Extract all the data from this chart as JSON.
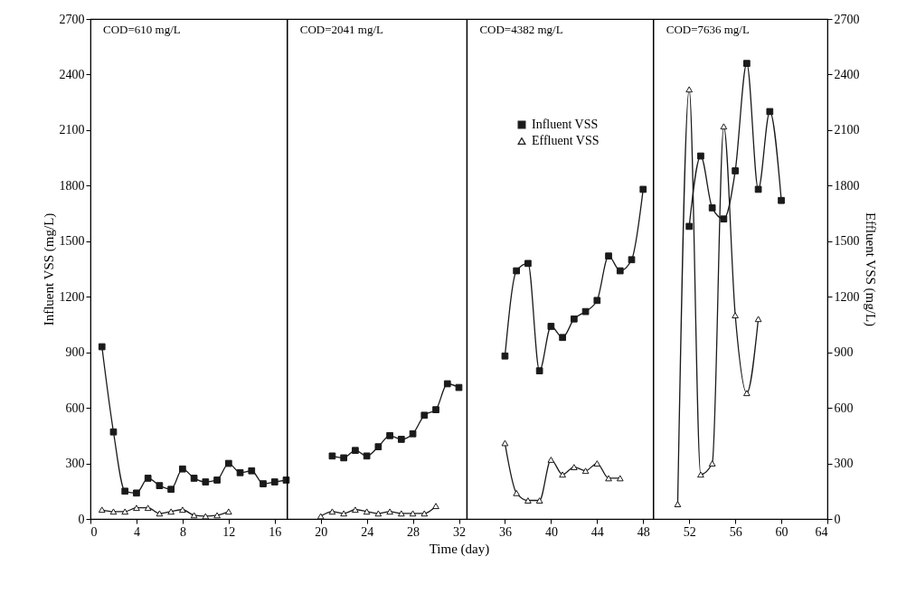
{
  "chart_data": {
    "type": "line",
    "xlabel": "Time (day)",
    "ylabel": "Influent VSS (mg/L)",
    "y2label": "Effluent VSS (mg/L)",
    "xlim": [
      0,
      64
    ],
    "xticks": [
      0,
      4,
      8,
      12,
      16,
      20,
      24,
      28,
      32,
      36,
      40,
      44,
      48,
      52,
      56,
      60,
      64
    ],
    "ylim": [
      0,
      2700
    ],
    "yticks": [
      0,
      300,
      600,
      900,
      1200,
      1500,
      1800,
      2100,
      2400,
      2700
    ],
    "y2lim": [
      0,
      2700
    ],
    "y2ticks": [
      0,
      300,
      600,
      900,
      1200,
      1500,
      1800,
      2100,
      2400,
      2700
    ],
    "grid": false,
    "legend": "top",
    "line_style": "solid",
    "annotations": [
      "COD=610 mg/L",
      "COD=2041 mg/L",
      "COD=4382 mg/L",
      "COD=7636 mg/L"
    ],
    "ref_lines": [
      {
        "axis": "x",
        "value": 17.1,
        "color": "#000000"
      },
      {
        "axis": "x",
        "value": 32.7,
        "color": "#000000"
      },
      {
        "axis": "x",
        "value": 48.9,
        "color": "#000000"
      }
    ],
    "series": [
      {
        "name": "Influent VSS",
        "color": "#1a1a1a",
        "marker": "square",
        "x": [
          1,
          2,
          3,
          4,
          5,
          6,
          7,
          8,
          9,
          10,
          11,
          12,
          13,
          14,
          15,
          16,
          17,
          21,
          22,
          23,
          24,
          25,
          26,
          27,
          28,
          29,
          30,
          31,
          32,
          36,
          37,
          38,
          39,
          40,
          41,
          42,
          43,
          44,
          45,
          46,
          47,
          48,
          52,
          53,
          54,
          55,
          56,
          57,
          58,
          59,
          60
        ],
        "values": [
          930,
          470,
          150,
          140,
          220,
          180,
          160,
          270,
          220,
          200,
          210,
          300,
          250,
          260,
          190,
          200,
          210,
          340,
          330,
          370,
          340,
          390,
          450,
          430,
          460,
          560,
          590,
          730,
          710,
          880,
          1340,
          1380,
          800,
          1040,
          980,
          1080,
          1120,
          1180,
          1420,
          1340,
          1400,
          1780,
          1580,
          1960,
          1680,
          1620,
          1880,
          2460,
          1780,
          2200,
          1720
        ]
      },
      {
        "name": "Effluent VSS",
        "color": "#1a1a1a",
        "marker": "triangle",
        "axis": "y2",
        "x": [
          1,
          2,
          3,
          4,
          5,
          6,
          7,
          8,
          9,
          10,
          11,
          12,
          20,
          21,
          22,
          23,
          24,
          25,
          26,
          27,
          28,
          29,
          30,
          36,
          37,
          38,
          39,
          40,
          41,
          42,
          43,
          44,
          45,
          46,
          51,
          52,
          53,
          54,
          55,
          56,
          57,
          58
        ],
        "values": [
          50,
          40,
          40,
          60,
          60,
          30,
          40,
          50,
          20,
          15,
          20,
          40,
          15,
          40,
          30,
          50,
          40,
          30,
          40,
          30,
          30,
          30,
          70,
          410,
          140,
          100,
          100,
          320,
          240,
          280,
          260,
          300,
          220,
          220,
          80,
          2320,
          240,
          300,
          2120,
          1100,
          680,
          1080
        ]
      }
    ]
  }
}
